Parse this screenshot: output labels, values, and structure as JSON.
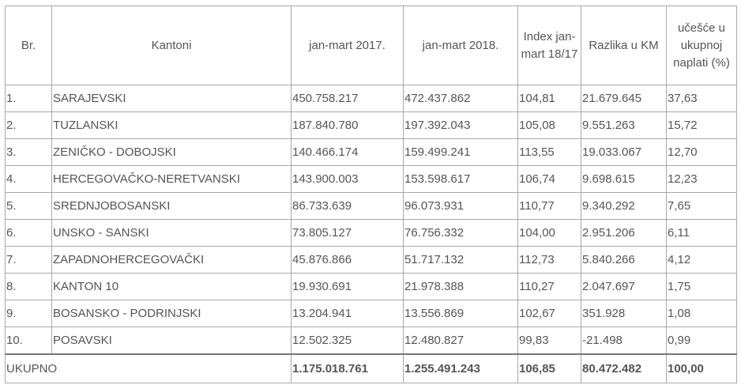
{
  "headers": [
    "Br.",
    "Kantoni",
    "jan-mart 2017.",
    "jan-mart 2018.",
    "Index jan-mart 18/17",
    "Razlika u KM",
    "učešće u ukupnoj naplati (%)"
  ],
  "rows": [
    [
      "1.",
      "SARAJEVSKI",
      "450.758.217",
      "472.437.862",
      "104,81",
      "21.679.645",
      "37,63"
    ],
    [
      "2.",
      "TUZLANSKI",
      "187.840.780",
      "197.392.043",
      "105,08",
      "9.551.263",
      "15,72"
    ],
    [
      "3.",
      "ZENIČKO - DOBOJSKI",
      "140.466.174",
      "159.499.241",
      "113,55",
      "19.033.067",
      "12,70"
    ],
    [
      "4.",
      "HERCEGOVAČKO-NERETVANSKI",
      "143.900.003",
      "153.598.617",
      "106,74",
      "9.698.615",
      "12,23"
    ],
    [
      "5.",
      "SREDNJOBOSANSKI",
      "86.733.639",
      "96.073.931",
      "110,77",
      "9.340.292",
      "7,65"
    ],
    [
      "6.",
      "UNSKO - SANSKI",
      "73.805.127",
      "76.756.332",
      "104,00",
      "2.951.206",
      "6,11"
    ],
    [
      "7.",
      "ZAPADNOHERCEGOVAČKI",
      "45.876.866",
      "51.717.132",
      "112,73",
      "5.840.266",
      "4,12"
    ],
    [
      "8.",
      "KANTON 10",
      "19.930.691",
      "21.978.388",
      "110,27",
      "2.047.697",
      "1,75"
    ],
    [
      "9.",
      "BOSANSKO - PODRINJSKI",
      "13.204.941",
      "13.556.869",
      "102,67",
      "351.928",
      "1,08"
    ],
    [
      "10.",
      "POSAVSKI",
      "12.502.325",
      "12.480.827",
      "99,83",
      "-21.498",
      "0,99"
    ]
  ],
  "total": [
    "UKUPNO",
    "1.175.018.761",
    "1.255.491.243",
    "106,85",
    "80.472.482",
    "100,00"
  ]
}
